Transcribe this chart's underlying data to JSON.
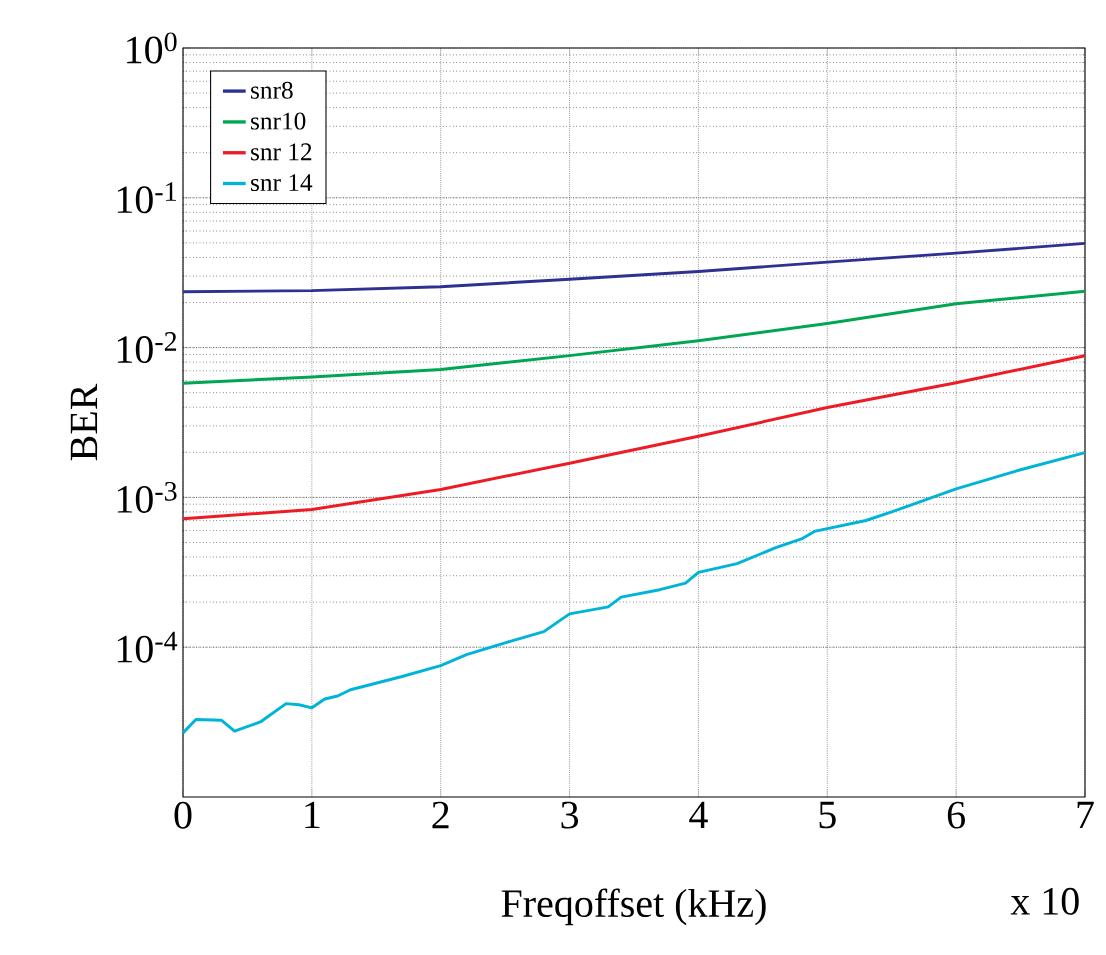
{
  "chart_data": {
    "type": "line",
    "xlabel": "Freqoffset (kHz)",
    "ylabel": "BER",
    "annotations": [
      "x 10"
    ],
    "log": "y",
    "grid": true,
    "legend": "top left",
    "line_style": "solid",
    "marker": "none",
    "xlim": [
      0,
      7
    ],
    "xticks": [
      0,
      1,
      2,
      3,
      4,
      5,
      6,
      7
    ],
    "ylim": [
      1e-05,
      1
    ],
    "yticks": [
      {
        "value": 0.0001,
        "label": "10$^{-4}$"
      },
      {
        "value": 0.001,
        "label": "10$^{-3}$"
      },
      {
        "value": 0.01,
        "label": "10$^{-2}$"
      },
      {
        "value": 0.1,
        "label": "10$^{-1}$"
      },
      {
        "value": 1,
        "label": "10$^{0}$"
      }
    ],
    "series": [
      {
        "name": "snr8",
        "color": "#2e3192",
        "x": [
          0,
          1,
          2,
          3,
          4,
          5,
          6,
          7
        ],
        "values": [
          0.0236,
          0.024,
          0.0255,
          0.0286,
          0.0322,
          0.0372,
          0.0427,
          0.0496
        ]
      },
      {
        "name": "snr10",
        "color": "#00a651",
        "x": [
          0,
          1,
          2,
          3,
          4,
          5,
          6,
          7
        ],
        "values": [
          0.00578,
          0.00637,
          0.00715,
          0.00884,
          0.0111,
          0.0145,
          0.0196,
          0.0238
        ]
      },
      {
        "name": "snr 12",
        "color": "#ed1c24",
        "x": [
          0,
          1,
          2,
          3,
          4,
          5,
          6,
          7
        ],
        "values": [
          0.00072,
          0.00083,
          0.00113,
          0.00169,
          0.00256,
          0.00398,
          0.00583,
          0.00883
        ]
      },
      {
        "name": "snr 14",
        "color": "#00b4d8",
        "x": [
          0,
          0.1,
          0.3,
          0.4,
          0.6,
          0.8,
          0.9,
          1.0,
          1.1,
          1.2,
          1.3,
          1.7,
          2.0,
          2.2,
          2.5,
          2.8,
          3.0,
          3.3,
          3.4,
          3.7,
          3.9,
          4.0,
          4.3,
          4.6,
          4.8,
          4.9,
          5.3,
          5.5,
          6.0,
          6.5,
          7.0
        ],
        "values": [
          2.68e-05,
          3.29e-05,
          3.25e-05,
          2.75e-05,
          3.17e-05,
          4.2e-05,
          4.13e-05,
          3.94e-05,
          4.51e-05,
          4.72e-05,
          5.2e-05,
          6.37e-05,
          7.54e-05,
          8.91e-05,
          0.000107,
          0.000127,
          0.000167,
          0.000186,
          0.000216,
          0.000242,
          0.000268,
          0.000316,
          0.000361,
          0.000462,
          0.000528,
          0.000593,
          0.000701,
          0.0008,
          0.00114,
          0.00153,
          0.00199
        ]
      }
    ]
  }
}
